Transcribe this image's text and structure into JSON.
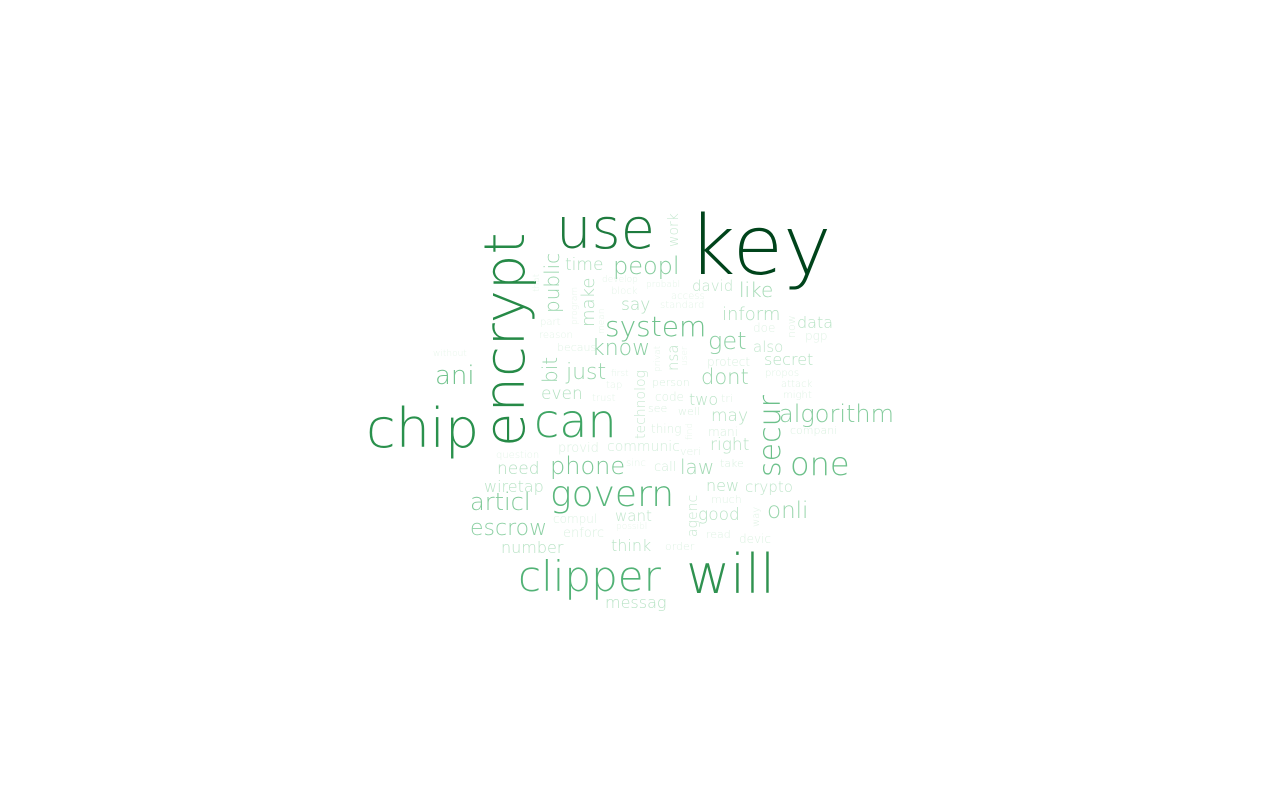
{
  "words": [
    {
      "text": "key",
      "color": "#00441b"
    },
    {
      "text": "use",
      "color": "#1e7b3e"
    },
    {
      "text": "encrypt",
      "color": "#268a47"
    },
    {
      "text": "chip",
      "color": "#2a914d"
    },
    {
      "text": "can",
      "color": "#3fa564"
    },
    {
      "text": "will",
      "color": "#2f9250"
    },
    {
      "text": "clipper",
      "color": "#52b276"
    },
    {
      "text": "govern",
      "color": "#5ab77c"
    },
    {
      "text": "secur",
      "color": "#6cc08a"
    },
    {
      "text": "one",
      "color": "#6cc08a"
    },
    {
      "text": "system",
      "color": "#72c38e"
    },
    {
      "text": "peopl",
      "color": "#85cc9d"
    },
    {
      "text": "algorithm",
      "color": "#85cc9d"
    },
    {
      "text": "ani",
      "color": "#72c38e"
    },
    {
      "text": "phone",
      "color": "#7cc896"
    },
    {
      "text": "articl",
      "color": "#82ca9a"
    },
    {
      "text": "escrow",
      "color": "#8dd0a4"
    },
    {
      "text": "know",
      "color": "#8dd0a4"
    },
    {
      "text": "get",
      "color": "#8dd0a4"
    },
    {
      "text": "public",
      "color": "#9ad6ad"
    },
    {
      "text": "bit",
      "color": "#9ad6ad"
    },
    {
      "text": "just",
      "color": "#9ad6ad"
    },
    {
      "text": "dont",
      "color": "#9ad6ad"
    },
    {
      "text": "onli",
      "color": "#9ad6ad"
    },
    {
      "text": "like",
      "color": "#a4dab5"
    },
    {
      "text": "time",
      "color": "#b2e0c0"
    },
    {
      "text": "say",
      "color": "#b2e0c0"
    },
    {
      "text": "make",
      "color": "#b2e0c0"
    },
    {
      "text": "inform",
      "color": "#b2e0c0"
    },
    {
      "text": "law",
      "color": "#a4dab5"
    },
    {
      "text": "need",
      "color": "#b2e0c0"
    },
    {
      "text": "even",
      "color": "#b2e0c0"
    },
    {
      "text": "number",
      "color": "#b8e3c5"
    },
    {
      "text": "think",
      "color": "#b8e3c5"
    },
    {
      "text": "messag",
      "color": "#b8e3c5"
    },
    {
      "text": "right",
      "color": "#b8e3c5"
    },
    {
      "text": "data",
      "color": "#b8e3c5"
    },
    {
      "text": "secret",
      "color": "#b8e3c5"
    },
    {
      "text": "wiretap",
      "color": "#b8e3c5"
    },
    {
      "text": "want",
      "color": "#c1e6cc"
    },
    {
      "text": "may",
      "color": "#b8e3c5"
    },
    {
      "text": "two",
      "color": "#b8e3c5"
    },
    {
      "text": "new",
      "color": "#b8e3c5"
    },
    {
      "text": "good",
      "color": "#b8e3c5"
    },
    {
      "text": "crypto",
      "color": "#c1e6cc"
    },
    {
      "text": "also",
      "color": "#c1e6cc"
    },
    {
      "text": "david",
      "color": "#c1e6cc"
    },
    {
      "text": "nsa",
      "color": "#c1e6cc"
    },
    {
      "text": "technolog",
      "color": "#c8e9d2"
    },
    {
      "text": "agenc",
      "color": "#c8e9d2"
    },
    {
      "text": "work",
      "color": "#c8e9d2"
    },
    {
      "text": "communic",
      "color": "#d3eedb"
    },
    {
      "text": "provid",
      "color": "#dbf1e1"
    },
    {
      "text": "enforc",
      "color": "#dbf1e1"
    },
    {
      "text": "compani",
      "color": "#dbf1e1"
    },
    {
      "text": "protect",
      "color": "#dbf1e1"
    },
    {
      "text": "mani",
      "color": "#dbf1e1"
    },
    {
      "text": "devic",
      "color": "#dbf1e1"
    },
    {
      "text": "code",
      "color": "#dbf1e1"
    },
    {
      "text": "person",
      "color": "#dbf1e1"
    },
    {
      "text": "thing",
      "color": "#dbf1e1"
    },
    {
      "text": "call",
      "color": "#d3eedb"
    },
    {
      "text": "see",
      "color": "#dbf1e1"
    },
    {
      "text": "well",
      "color": "#dbf1e1"
    },
    {
      "text": "take",
      "color": "#dbf1e1"
    },
    {
      "text": "much",
      "color": "#e0f3e5"
    },
    {
      "text": "read",
      "color": "#e0f3e5"
    },
    {
      "text": "order",
      "color": "#e0f3e5"
    },
    {
      "text": "compul",
      "color": "#e0f3e5"
    },
    {
      "text": "veri",
      "color": "#e0f3e5"
    },
    {
      "text": "propos",
      "color": "#e0f3e5"
    },
    {
      "text": "attack",
      "color": "#e0f3e5"
    },
    {
      "text": "might",
      "color": "#e0f3e5"
    },
    {
      "text": "pgp",
      "color": "#e0f3e5"
    },
    {
      "text": "doe",
      "color": "#e0f3e5"
    },
    {
      "text": "now",
      "color": "#e0f3e5"
    },
    {
      "text": "tri",
      "color": "#e0f3e5"
    },
    {
      "text": "way",
      "color": "#e0f3e5"
    },
    {
      "text": "becaus",
      "color": "#e0f3e5"
    },
    {
      "text": "reason",
      "color": "#e5f5e9"
    },
    {
      "text": "part",
      "color": "#e5f5e9"
    },
    {
      "text": "access",
      "color": "#e5f5e9"
    },
    {
      "text": "standard",
      "color": "#e5f5e9"
    },
    {
      "text": "block",
      "color": "#e5f5e9"
    },
    {
      "text": "develop",
      "color": "#e5f5e9"
    },
    {
      "text": "probabl",
      "color": "#e5f5e9"
    },
    {
      "text": "privat",
      "color": "#e5f5e9"
    },
    {
      "text": "first",
      "color": "#e5f5e9"
    },
    {
      "text": "tap",
      "color": "#e5f5e9"
    },
    {
      "text": "trust",
      "color": "#e5f5e9"
    },
    {
      "text": "question",
      "color": "#e5f5e9"
    },
    {
      "text": "sinc",
      "color": "#e5f5e9"
    },
    {
      "text": "without",
      "color": "#e8f6eb"
    },
    {
      "text": "possibl",
      "color": "#e8f6eb"
    },
    {
      "text": "find",
      "color": "#e8f6eb"
    },
    {
      "text": "user",
      "color": "#e8f6eb"
    },
    {
      "text": "program",
      "color": "#e8f6eb"
    },
    {
      "text": "mean",
      "color": "#e8f6eb"
    },
    {
      "text": "that",
      "color": "#e8f6eb"
    }
  ]
}
